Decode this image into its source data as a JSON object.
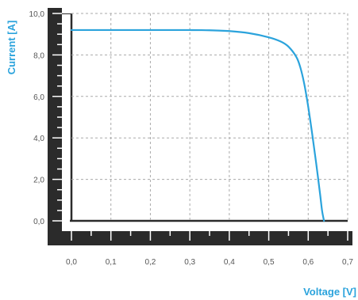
{
  "chart_data": {
    "type": "line",
    "title": "",
    "xlabel": "Voltage [V]",
    "ylabel": "Current [A]",
    "xlim": [
      0.0,
      0.7
    ],
    "ylim": [
      0.0,
      10.0
    ],
    "x_ticks": [
      0.0,
      0.1,
      0.2,
      0.3,
      0.4,
      0.5,
      0.6,
      0.7
    ],
    "x_tick_labels": [
      "0,0",
      "0,1",
      "0,2",
      "0,3",
      "0,4",
      "0,5",
      "0,6",
      "0,7"
    ],
    "y_ticks": [
      0.0,
      2.0,
      4.0,
      6.0,
      8.0,
      10.0
    ],
    "y_tick_labels": [
      "0,0",
      "2,0",
      "4,0",
      "6,0",
      "8,0",
      "10,0"
    ],
    "grid": true,
    "legend": "none",
    "series": [
      {
        "color": "#2ba3dc",
        "x": [
          0.0,
          0.1,
          0.2,
          0.3,
          0.35,
          0.4,
          0.45,
          0.5,
          0.53,
          0.55,
          0.57,
          0.58,
          0.59,
          0.6,
          0.61,
          0.62,
          0.63,
          0.635,
          0.64
        ],
        "y": [
          9.2,
          9.2,
          9.2,
          9.2,
          9.19,
          9.15,
          9.05,
          8.85,
          8.65,
          8.4,
          7.9,
          7.4,
          6.6,
          5.5,
          4.2,
          2.8,
          1.3,
          0.5,
          0.0
        ]
      }
    ],
    "colors": {
      "axis_frame": "#2b2b2b",
      "grid": "#aaaaaa",
      "axis_title": "#2ba3dc",
      "tick_label": "#555555"
    }
  }
}
